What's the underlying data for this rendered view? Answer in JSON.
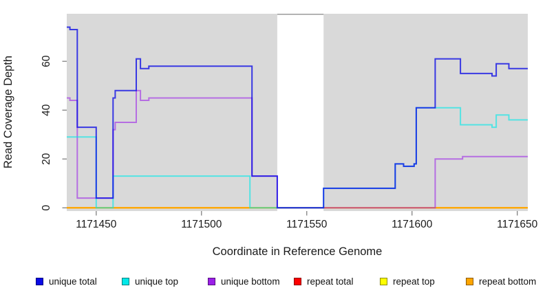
{
  "chart_data": {
    "type": "line",
    "subtype": "step-coverage",
    "title": "",
    "xlabel": "Coordinate in Reference Genome",
    "ylabel": "Read Coverage Depth",
    "xlim": [
      1171436,
      1171655
    ],
    "ylim": [
      0,
      79
    ],
    "x_ticks": [
      1171450,
      1171500,
      1171550,
      1171600,
      1171650
    ],
    "y_ticks": [
      0,
      20,
      40,
      60
    ],
    "grid": false,
    "legend_position": "bottom",
    "plot_background": "#D9D9D9",
    "figure_background": "#FFFFFF",
    "tick_color": "#808080",
    "text_color": "#1A1A1A",
    "mask_region": {
      "from": 1171536,
      "to": 1171558,
      "color": "#FFFFFF",
      "top_edge_color": "#9A9A9A"
    },
    "series": [
      {
        "name": "unique total",
        "key": "unique-total",
        "color": "#0A0AE6",
        "opacity": 0.78,
        "z": 6,
        "points": [
          [
            1171436,
            74
          ],
          [
            1171437.5,
            73
          ],
          [
            1171441,
            33
          ],
          [
            1171450,
            4
          ],
          [
            1171458,
            45
          ],
          [
            1171459,
            48
          ],
          [
            1171469,
            61
          ],
          [
            1171471,
            57
          ],
          [
            1171475,
            58
          ],
          [
            1171524,
            13
          ],
          [
            1171536,
            0
          ],
          [
            1171558,
            8
          ],
          [
            1171592,
            18
          ],
          [
            1171596,
            17
          ],
          [
            1171601,
            18
          ],
          [
            1171602,
            41
          ],
          [
            1171611,
            61
          ],
          [
            1171623,
            55
          ],
          [
            1171638,
            54
          ],
          [
            1171640,
            59
          ],
          [
            1171646,
            57
          ],
          [
            1171655,
            57
          ]
        ]
      },
      {
        "name": "unique top",
        "key": "unique-top",
        "color": "#00E8E8",
        "opacity": 0.62,
        "z": 5,
        "points": [
          [
            1171436,
            29
          ],
          [
            1171450,
            0
          ],
          [
            1171458,
            13
          ],
          [
            1171523,
            0
          ],
          [
            1171558,
            8
          ],
          [
            1171592,
            18
          ],
          [
            1171596,
            17
          ],
          [
            1171601,
            18
          ],
          [
            1171602,
            41
          ],
          [
            1171623,
            34
          ],
          [
            1171638,
            33
          ],
          [
            1171640,
            38
          ],
          [
            1171646,
            36
          ],
          [
            1171655,
            36
          ]
        ]
      },
      {
        "name": "unique bottom",
        "key": "unique-bottom",
        "color": "#9B1FE8",
        "opacity": 0.58,
        "z": 4,
        "points": [
          [
            1171436,
            45
          ],
          [
            1171437.5,
            44
          ],
          [
            1171441,
            4
          ],
          [
            1171458,
            32
          ],
          [
            1171459,
            35
          ],
          [
            1171469,
            48
          ],
          [
            1171471,
            44
          ],
          [
            1171475,
            45
          ],
          [
            1171524,
            13
          ],
          [
            1171536,
            0
          ],
          [
            1171611,
            20
          ],
          [
            1171624,
            21
          ],
          [
            1171655,
            21
          ]
        ]
      },
      {
        "name": "repeat total",
        "key": "repeat-total",
        "color": "#FF0000",
        "opacity": 1,
        "z": 1,
        "points": [
          [
            1171436,
            0
          ],
          [
            1171655,
            0
          ]
        ]
      },
      {
        "name": "repeat top",
        "key": "repeat-top",
        "color": "#FFFF00",
        "opacity": 1,
        "z": 2,
        "points": [
          [
            1171436,
            0
          ],
          [
            1171655,
            0
          ]
        ]
      },
      {
        "name": "repeat bottom",
        "key": "repeat-bottom",
        "color": "#FFA500",
        "opacity": 1,
        "z": 3,
        "points": [
          [
            1171436,
            0
          ],
          [
            1171655,
            0
          ]
        ]
      }
    ]
  }
}
